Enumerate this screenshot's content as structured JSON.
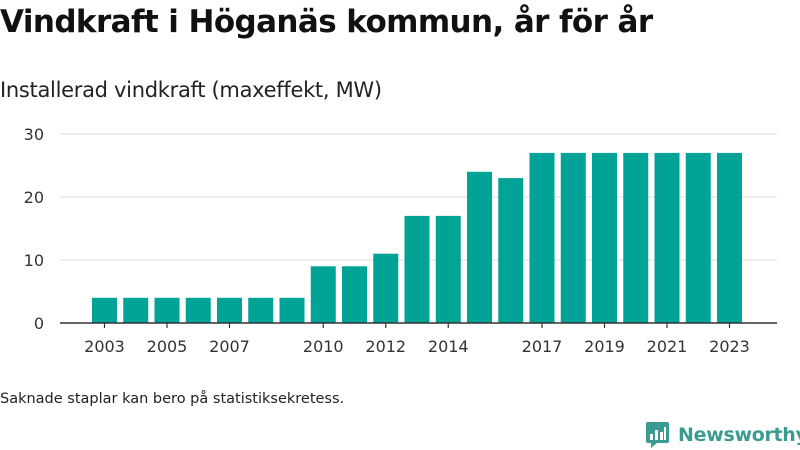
{
  "title": "Vindkraft i Höganäs kommun, år för år",
  "subtitle": "Installerad vindkraft (maxeffekt, MW)",
  "note": "Saknade staplar kan bero på statistiksekretess.",
  "brand": {
    "name": "Newsworthy",
    "logo_icon": "newsworthy-logo-icon",
    "color": "#3a9c90"
  },
  "chart_data": {
    "type": "bar",
    "categories": [
      "2003",
      "2004",
      "2005",
      "2006",
      "2007",
      "2008",
      "2009",
      "2010",
      "2011",
      "2012",
      "2013",
      "2014",
      "2015",
      "2016",
      "2017",
      "2018",
      "2019",
      "2020",
      "2021",
      "2022",
      "2023"
    ],
    "values": [
      4,
      4,
      4,
      4,
      4,
      4,
      4,
      9,
      9,
      11,
      17,
      17,
      24,
      23,
      27,
      27,
      27,
      27,
      27,
      27,
      27
    ],
    "x_tick_labels": [
      "2003",
      "2005",
      "2007",
      "2010",
      "2012",
      "2014",
      "2017",
      "2019",
      "2021",
      "2023"
    ],
    "y_ticks": [
      0,
      10,
      20,
      30
    ],
    "ylim": [
      0,
      30
    ],
    "grid": true,
    "bar_color": "#00a396",
    "title": "Vindkraft i Höganäs kommun, år för år",
    "ylabel": "Installerad vindkraft (maxeffekt, MW)",
    "xlabel": ""
  }
}
